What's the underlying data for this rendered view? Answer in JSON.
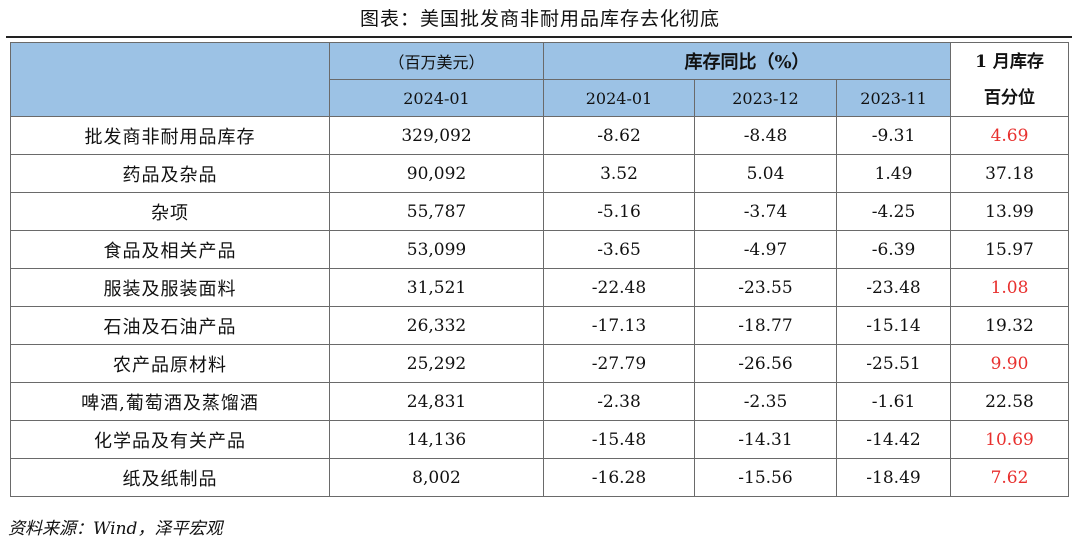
{
  "title": "图表：美国批发商非耐用品库存去化彻底",
  "header": {
    "unit": "（百万美元）",
    "yoy": "库存同比（%）",
    "pct_line1": "1 月库存",
    "pct_line2": "百分位",
    "col_value_date": "2024-01",
    "col_yoy_1": "2024-01",
    "col_yoy_2": "2023-12",
    "col_yoy_3": "2023-11"
  },
  "rows": [
    {
      "name": "批发商非耐用品库存",
      "value": "329,092",
      "y1": "-8.62",
      "y2": "-8.48",
      "y3": "-9.31",
      "pct": "4.69",
      "pct_color": "red"
    },
    {
      "name": "药品及杂品",
      "value": "90,092",
      "y1": "3.52",
      "y2": "5.04",
      "y3": "1.49",
      "pct": "37.18",
      "pct_color": "black"
    },
    {
      "name": "杂项",
      "value": "55,787",
      "y1": "-5.16",
      "y2": "-3.74",
      "y3": "-4.25",
      "pct": "13.99",
      "pct_color": "black"
    },
    {
      "name": "食品及相关产品",
      "value": "53,099",
      "y1": "-3.65",
      "y2": "-4.97",
      "y3": "-6.39",
      "pct": "15.97",
      "pct_color": "black"
    },
    {
      "name": "服装及服装面料",
      "value": "31,521",
      "y1": "-22.48",
      "y2": "-23.55",
      "y3": "-23.48",
      "pct": "1.08",
      "pct_color": "red"
    },
    {
      "name": "石油及石油产品",
      "value": "26,332",
      "y1": "-17.13",
      "y2": "-18.77",
      "y3": "-15.14",
      "pct": "19.32",
      "pct_color": "black"
    },
    {
      "name": "农产品原材料",
      "value": "25,292",
      "y1": "-27.79",
      "y2": "-26.56",
      "y3": "-25.51",
      "pct": "9.90",
      "pct_color": "red"
    },
    {
      "name": "啤酒,葡萄酒及蒸馏酒",
      "value": "24,831",
      "y1": "-2.38",
      "y2": "-2.35",
      "y3": "-1.61",
      "pct": "22.58",
      "pct_color": "black"
    },
    {
      "name": "化学品及有关产品",
      "value": "14,136",
      "y1": "-15.48",
      "y2": "-14.31",
      "y3": "-14.42",
      "pct": "10.69",
      "pct_color": "red"
    },
    {
      "name": "纸及纸制品",
      "value": "8,002",
      "y1": "-16.28",
      "y2": "-15.56",
      "y3": "-18.49",
      "pct": "7.62",
      "pct_color": "red"
    }
  ],
  "source": "资料来源：Wind，泽平宏观",
  "colors": {
    "header_bg": "#9cc2e5",
    "highlight": "#e8302e"
  }
}
